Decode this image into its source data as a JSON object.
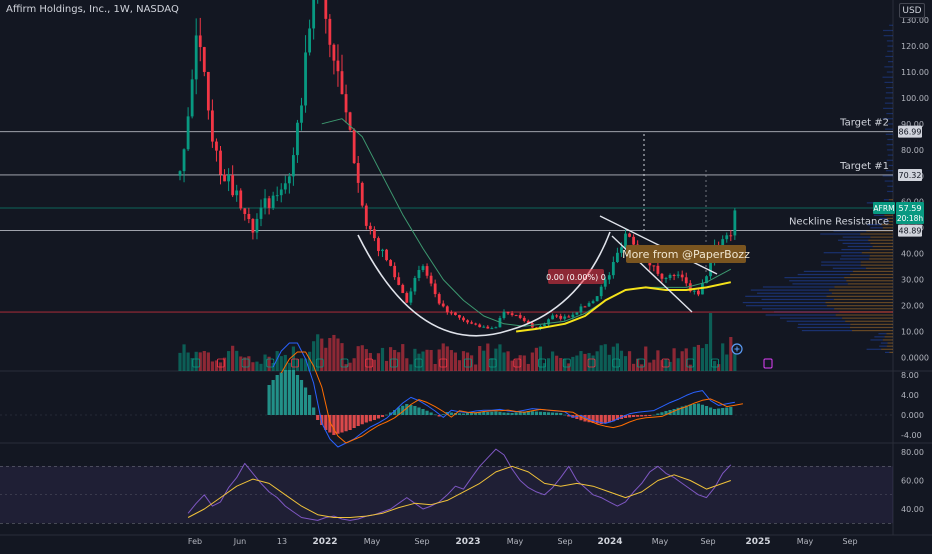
{
  "chart_data": {
    "type": "line",
    "title": "Affirm Holdings, Inc., 1W, NASDAQ",
    "currency": "USD",
    "x_ticks": [
      "Feb",
      "Jun",
      "13",
      "2022",
      "May",
      "Sep",
      "2023",
      "May",
      "Sep",
      "2024",
      "May",
      "Sep",
      "2025",
      "May",
      "Sep"
    ],
    "x_ticks_bold": [
      "2022",
      "2023",
      "2024",
      "2025"
    ],
    "price_axis": {
      "ticks": [
        "130.00",
        "120.00",
        "110.00",
        "100.00",
        "90.00",
        "80.00",
        "70.00",
        "60.00",
        "50.00",
        "40.00",
        "30.00",
        "20.00",
        "10.00",
        "0.0000"
      ],
      "tick_values": [
        130,
        120,
        110,
        100,
        90,
        80,
        70,
        60,
        50,
        40,
        30,
        20,
        10,
        0
      ],
      "ylim": [
        0,
        136
      ]
    },
    "price_labels": [
      {
        "text": "86.99",
        "value": 86.99
      },
      {
        "text": "70.32",
        "value": 70.32
      },
      {
        "text": "48.89",
        "value": 48.89
      }
    ],
    "last_price": {
      "symbol": "AFRM",
      "value": 57.59,
      "text": "57.59",
      "countdown": "20:18h"
    },
    "horizontal_levels": [
      {
        "value": 86.99,
        "label": "Target #2",
        "color": "#d1d4dc"
      },
      {
        "value": 70.32,
        "label": "Target #1",
        "color": "#d1d4dc"
      },
      {
        "value": 48.89,
        "label": "Neckline Resistance",
        "color": "#d1d4dc"
      },
      {
        "value": 57.59,
        "label": "",
        "color": "#089981"
      },
      {
        "value": 17.5,
        "label": "",
        "color": "#f23645"
      }
    ],
    "annotations": {
      "callout": "More from @PaperBozz",
      "measure": "0.00 (0.00%) 0"
    },
    "price_series": [
      {
        "t": 0,
        "v": 70
      },
      {
        "t": 2,
        "v": 95
      },
      {
        "t": 4,
        "v": 120
      },
      {
        "t": 6,
        "v": 112
      },
      {
        "t": 8,
        "v": 85
      },
      {
        "t": 10,
        "v": 72
      },
      {
        "t": 12,
        "v": 68
      },
      {
        "t": 14,
        "v": 62
      },
      {
        "t": 16,
        "v": 55
      },
      {
        "t": 18,
        "v": 50
      },
      {
        "t": 20,
        "v": 60
      },
      {
        "t": 22,
        "v": 58
      },
      {
        "t": 24,
        "v": 63
      },
      {
        "t": 26,
        "v": 68
      },
      {
        "t": 28,
        "v": 75
      },
      {
        "t": 30,
        "v": 100
      },
      {
        "t": 32,
        "v": 130
      },
      {
        "t": 34,
        "v": 145
      },
      {
        "t": 36,
        "v": 130
      },
      {
        "t": 38,
        "v": 115
      },
      {
        "t": 40,
        "v": 100
      },
      {
        "t": 42,
        "v": 85
      },
      {
        "t": 44,
        "v": 70
      },
      {
        "t": 46,
        "v": 50
      },
      {
        "t": 48,
        "v": 45
      },
      {
        "t": 50,
        "v": 40
      },
      {
        "t": 52,
        "v": 35
      },
      {
        "t": 54,
        "v": 28
      },
      {
        "t": 56,
        "v": 22
      },
      {
        "t": 58,
        "v": 30
      },
      {
        "t": 60,
        "v": 35
      },
      {
        "t": 62,
        "v": 28
      },
      {
        "t": 64,
        "v": 20
      },
      {
        "t": 66,
        "v": 18
      },
      {
        "t": 68,
        "v": 16
      },
      {
        "t": 70,
        "v": 14
      },
      {
        "t": 72,
        "v": 13
      },
      {
        "t": 74,
        "v": 12
      },
      {
        "t": 76,
        "v": 11
      },
      {
        "t": 78,
        "v": 12
      },
      {
        "t": 80,
        "v": 18
      },
      {
        "t": 82,
        "v": 17
      },
      {
        "t": 84,
        "v": 15
      },
      {
        "t": 86,
        "v": 13
      },
      {
        "t": 88,
        "v": 11
      },
      {
        "t": 90,
        "v": 13
      },
      {
        "t": 92,
        "v": 16
      },
      {
        "t": 94,
        "v": 15
      },
      {
        "t": 96,
        "v": 16
      },
      {
        "t": 98,
        "v": 18
      },
      {
        "t": 100,
        "v": 20
      },
      {
        "t": 102,
        "v": 22
      },
      {
        "t": 104,
        "v": 27
      },
      {
        "t": 106,
        "v": 32
      },
      {
        "t": 108,
        "v": 40
      },
      {
        "t": 110,
        "v": 48
      },
      {
        "t": 112,
        "v": 45
      },
      {
        "t": 114,
        "v": 42
      },
      {
        "t": 116,
        "v": 36
      },
      {
        "t": 118,
        "v": 33
      },
      {
        "t": 120,
        "v": 30
      },
      {
        "t": 122,
        "v": 32
      },
      {
        "t": 124,
        "v": 30
      },
      {
        "t": 126,
        "v": 26
      },
      {
        "t": 128,
        "v": 24
      },
      {
        "t": 130,
        "v": 32
      },
      {
        "t": 132,
        "v": 42
      },
      {
        "t": 134,
        "v": 46
      },
      {
        "t": 136,
        "v": 48
      },
      {
        "t": 137,
        "v": 57.59
      }
    ],
    "ma_yellow": [
      {
        "t": 83,
        "v": 10
      },
      {
        "t": 88,
        "v": 11
      },
      {
        "t": 95,
        "v": 13
      },
      {
        "t": 100,
        "v": 16
      },
      {
        "t": 105,
        "v": 22
      },
      {
        "t": 110,
        "v": 26
      },
      {
        "t": 115,
        "v": 27
      },
      {
        "t": 120,
        "v": 26
      },
      {
        "t": 125,
        "v": 26
      },
      {
        "t": 130,
        "v": 27
      },
      {
        "t": 136,
        "v": 29
      }
    ],
    "ma_green": [
      {
        "t": 35,
        "v": 90
      },
      {
        "t": 40,
        "v": 92
      },
      {
        "t": 45,
        "v": 85
      },
      {
        "t": 50,
        "v": 70
      },
      {
        "t": 55,
        "v": 55
      },
      {
        "t": 60,
        "v": 42
      },
      {
        "t": 65,
        "v": 30
      },
      {
        "t": 70,
        "v": 22
      },
      {
        "t": 75,
        "v": 16
      },
      {
        "t": 80,
        "v": 13
      },
      {
        "t": 85,
        "v": 12
      },
      {
        "t": 90,
        "v": 13
      },
      {
        "t": 95,
        "v": 14
      },
      {
        "t": 100,
        "v": 17
      },
      {
        "t": 105,
        "v": 22
      },
      {
        "t": 110,
        "v": 26
      },
      {
        "t": 115,
        "v": 27
      },
      {
        "t": 120,
        "v": 27
      },
      {
        "t": 125,
        "v": 27
      },
      {
        "t": 130,
        "v": 29
      },
      {
        "t": 136,
        "v": 34
      }
    ],
    "macd_axis": {
      "ticks": [
        "8.00",
        "4.00",
        "0.000",
        "-4.00"
      ],
      "tick_values": [
        8,
        4,
        0,
        -4
      ],
      "ylim": [
        -4.6,
        9
      ]
    },
    "macd_hist": [
      {
        "t": 22,
        "v": 6
      },
      {
        "t": 24,
        "v": 8
      },
      {
        "t": 26,
        "v": 9
      },
      {
        "t": 28,
        "v": 9
      },
      {
        "t": 30,
        "v": 7
      },
      {
        "t": 32,
        "v": 4
      },
      {
        "t": 34,
        "v": -1
      },
      {
        "t": 36,
        "v": -3
      },
      {
        "t": 38,
        "v": -4
      },
      {
        "t": 40,
        "v": -3.5
      },
      {
        "t": 42,
        "v": -3
      },
      {
        "t": 44,
        "v": -2.2
      },
      {
        "t": 46,
        "v": -1.5
      },
      {
        "t": 48,
        "v": -1
      },
      {
        "t": 50,
        "v": -0.4
      },
      {
        "t": 52,
        "v": 0.5
      },
      {
        "t": 54,
        "v": 1.5
      },
      {
        "t": 56,
        "v": 2.2
      },
      {
        "t": 58,
        "v": 1.8
      },
      {
        "t": 60,
        "v": 1.2
      },
      {
        "t": 62,
        "v": 0.5
      },
      {
        "t": 64,
        "v": -0.3
      },
      {
        "t": 66,
        "v": 0.6
      },
      {
        "t": 68,
        "v": 0.4
      },
      {
        "t": 70,
        "v": 0.3
      },
      {
        "t": 72,
        "v": 0.5
      },
      {
        "t": 74,
        "v": 0.6
      },
      {
        "t": 76,
        "v": 0.6
      },
      {
        "t": 78,
        "v": 0.7
      },
      {
        "t": 80,
        "v": 0.5
      },
      {
        "t": 82,
        "v": 0.4
      },
      {
        "t": 84,
        "v": 0.6
      },
      {
        "t": 86,
        "v": 0.8
      },
      {
        "t": 88,
        "v": 0.7
      },
      {
        "t": 90,
        "v": 0.6
      },
      {
        "t": 92,
        "v": 0.5
      },
      {
        "t": 94,
        "v": 0.4
      },
      {
        "t": 96,
        "v": -0.3
      },
      {
        "t": 98,
        "v": -0.8
      },
      {
        "t": 100,
        "v": -1.3
      },
      {
        "t": 102,
        "v": -1.6
      },
      {
        "t": 104,
        "v": -1.8
      },
      {
        "t": 106,
        "v": -1.5
      },
      {
        "t": 108,
        "v": -1
      },
      {
        "t": 110,
        "v": -0.6
      },
      {
        "t": 112,
        "v": -0.4
      },
      {
        "t": 114,
        "v": -0.3
      },
      {
        "t": 116,
        "v": -0.2
      },
      {
        "t": 118,
        "v": 0.3
      },
      {
        "t": 120,
        "v": 0.8
      },
      {
        "t": 122,
        "v": 1.2
      },
      {
        "t": 124,
        "v": 1.7
      },
      {
        "t": 126,
        "v": 2.1
      },
      {
        "t": 128,
        "v": 2.3
      },
      {
        "t": 130,
        "v": 1.8
      },
      {
        "t": 132,
        "v": 1.2
      },
      {
        "t": 134,
        "v": 1.4
      },
      {
        "t": 136,
        "v": 1.6
      }
    ],
    "rsi_axis": {
      "ticks": [
        "80.00",
        "60.00",
        "40.00"
      ],
      "tick_values": [
        80,
        60,
        40
      ],
      "ylim": [
        28,
        83
      ]
    },
    "rsi": [
      {
        "t": 2,
        "v": 37
      },
      {
        "t": 4,
        "v": 44
      },
      {
        "t": 6,
        "v": 50
      },
      {
        "t": 8,
        "v": 42
      },
      {
        "t": 10,
        "v": 45
      },
      {
        "t": 12,
        "v": 55
      },
      {
        "t": 14,
        "v": 62
      },
      {
        "t": 16,
        "v": 72
      },
      {
        "t": 18,
        "v": 65
      },
      {
        "t": 20,
        "v": 58
      },
      {
        "t": 22,
        "v": 52
      },
      {
        "t": 24,
        "v": 48
      },
      {
        "t": 26,
        "v": 42
      },
      {
        "t": 28,
        "v": 38
      },
      {
        "t": 30,
        "v": 34
      },
      {
        "t": 32,
        "v": 33
      },
      {
        "t": 34,
        "v": 32
      },
      {
        "t": 36,
        "v": 34
      },
      {
        "t": 38,
        "v": 35
      },
      {
        "t": 40,
        "v": 33
      },
      {
        "t": 42,
        "v": 32
      },
      {
        "t": 44,
        "v": 33
      },
      {
        "t": 46,
        "v": 35
      },
      {
        "t": 48,
        "v": 36
      },
      {
        "t": 50,
        "v": 38
      },
      {
        "t": 52,
        "v": 40
      },
      {
        "t": 54,
        "v": 44
      },
      {
        "t": 56,
        "v": 48
      },
      {
        "t": 58,
        "v": 44
      },
      {
        "t": 60,
        "v": 40
      },
      {
        "t": 62,
        "v": 42
      },
      {
        "t": 64,
        "v": 45
      },
      {
        "t": 66,
        "v": 50
      },
      {
        "t": 68,
        "v": 56
      },
      {
        "t": 70,
        "v": 54
      },
      {
        "t": 72,
        "v": 62
      },
      {
        "t": 74,
        "v": 70
      },
      {
        "t": 76,
        "v": 76
      },
      {
        "t": 78,
        "v": 82
      },
      {
        "t": 80,
        "v": 78
      },
      {
        "t": 82,
        "v": 68
      },
      {
        "t": 84,
        "v": 60
      },
      {
        "t": 86,
        "v": 55
      },
      {
        "t": 88,
        "v": 52
      },
      {
        "t": 90,
        "v": 50
      },
      {
        "t": 92,
        "v": 55
      },
      {
        "t": 94,
        "v": 62
      },
      {
        "t": 96,
        "v": 70
      },
      {
        "t": 98,
        "v": 60
      },
      {
        "t": 100,
        "v": 55
      },
      {
        "t": 102,
        "v": 50
      },
      {
        "t": 104,
        "v": 48
      },
      {
        "t": 106,
        "v": 45
      },
      {
        "t": 108,
        "v": 42
      },
      {
        "t": 110,
        "v": 45
      },
      {
        "t": 112,
        "v": 52
      },
      {
        "t": 114,
        "v": 58
      },
      {
        "t": 116,
        "v": 66
      },
      {
        "t": 118,
        "v": 70
      },
      {
        "t": 120,
        "v": 65
      },
      {
        "t": 122,
        "v": 62
      },
      {
        "t": 124,
        "v": 58
      },
      {
        "t": 126,
        "v": 54
      },
      {
        "t": 128,
        "v": 50
      },
      {
        "t": 130,
        "v": 48
      },
      {
        "t": 132,
        "v": 55
      },
      {
        "t": 134,
        "v": 65
      },
      {
        "t": 136,
        "v": 71
      }
    ],
    "rsi_ma": [
      {
        "t": 2,
        "v": 34
      },
      {
        "t": 6,
        "v": 40
      },
      {
        "t": 10,
        "v": 48
      },
      {
        "t": 14,
        "v": 56
      },
      {
        "t": 18,
        "v": 61
      },
      {
        "t": 22,
        "v": 58
      },
      {
        "t": 26,
        "v": 50
      },
      {
        "t": 30,
        "v": 42
      },
      {
        "t": 34,
        "v": 36
      },
      {
        "t": 38,
        "v": 34
      },
      {
        "t": 42,
        "v": 34
      },
      {
        "t": 46,
        "v": 35
      },
      {
        "t": 50,
        "v": 37
      },
      {
        "t": 54,
        "v": 41
      },
      {
        "t": 58,
        "v": 44
      },
      {
        "t": 62,
        "v": 43
      },
      {
        "t": 66,
        "v": 46
      },
      {
        "t": 70,
        "v": 52
      },
      {
        "t": 74,
        "v": 58
      },
      {
        "t": 78,
        "v": 66
      },
      {
        "t": 82,
        "v": 70
      },
      {
        "t": 86,
        "v": 66
      },
      {
        "t": 90,
        "v": 58
      },
      {
        "t": 94,
        "v": 56
      },
      {
        "t": 98,
        "v": 58
      },
      {
        "t": 102,
        "v": 56
      },
      {
        "t": 106,
        "v": 52
      },
      {
        "t": 110,
        "v": 48
      },
      {
        "t": 114,
        "v": 52
      },
      {
        "t": 118,
        "v": 60
      },
      {
        "t": 122,
        "v": 64
      },
      {
        "t": 126,
        "v": 60
      },
      {
        "t": 130,
        "v": 54
      },
      {
        "t": 136,
        "v": 60
      }
    ],
    "colors": {
      "background": "#131722",
      "up": "#089981",
      "down": "#f23645",
      "text": "#b2b5be",
      "target_line": "#d1d4dc",
      "support": "#f23645",
      "ma_yellow": "#f5e31a",
      "ma_green": "#3d9970",
      "rsi": "#7e57c2",
      "rsi_ma": "#f0c23a",
      "callout_bg": "#7a5520"
    }
  }
}
